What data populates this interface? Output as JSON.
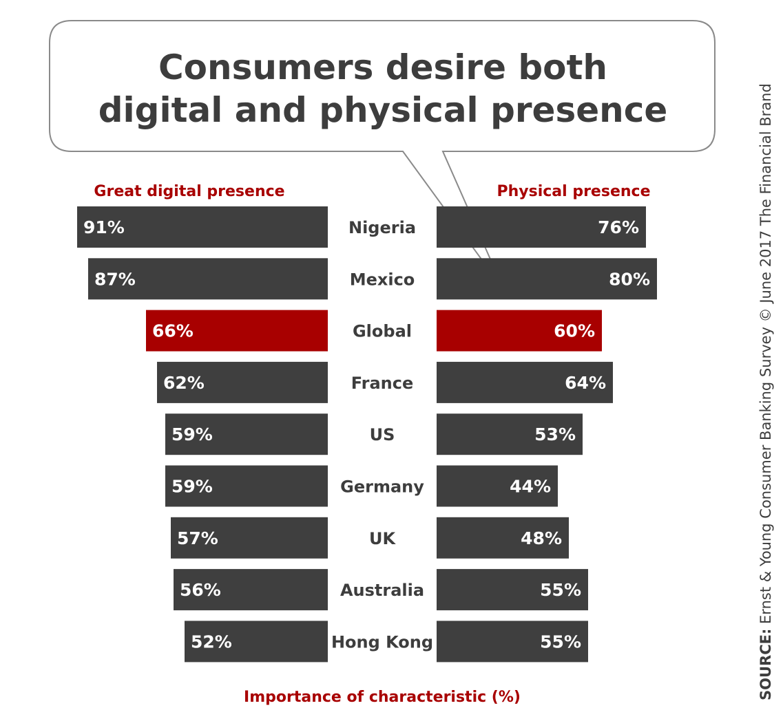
{
  "colors": {
    "bar": "#3f3f3f",
    "highlight": "#a80000",
    "accent_text": "#a80000",
    "text": "#3d3d3d",
    "bubble_stroke": "#8a8a8a"
  },
  "chart_data": {
    "type": "bar",
    "orientation": "horizontal-butterfly",
    "title_lines": [
      "Consumers desire both",
      "digital and physical presence"
    ],
    "categories": [
      "Nigeria",
      "Mexico",
      "Global",
      "France",
      "US",
      "Germany",
      "UK",
      "Australia",
      "Hong Kong"
    ],
    "highlight_category": "Global",
    "series": [
      {
        "name": "Great digital presence",
        "side": "left",
        "values": [
          91,
          87,
          66,
          62,
          59,
          59,
          57,
          56,
          52
        ],
        "labels": [
          "91%",
          "87%",
          "66%",
          "62%",
          "59%",
          "59%",
          "57%",
          "56%",
          "52%"
        ]
      },
      {
        "name": "Physical presence",
        "side": "right",
        "values": [
          76,
          80,
          60,
          64,
          53,
          44,
          48,
          55,
          55
        ],
        "labels": [
          "76%",
          "80%",
          "60%",
          "64%",
          "53%",
          "44%",
          "48%",
          "55%",
          "55%"
        ]
      }
    ],
    "xlabel": "Importance of characteristic (%)",
    "xlim": [
      0,
      100
    ],
    "source_prefix": "SOURCE:",
    "source_text": " Ernst & Young Consumer Banking Survey © June 2017 The Financial Brand"
  }
}
